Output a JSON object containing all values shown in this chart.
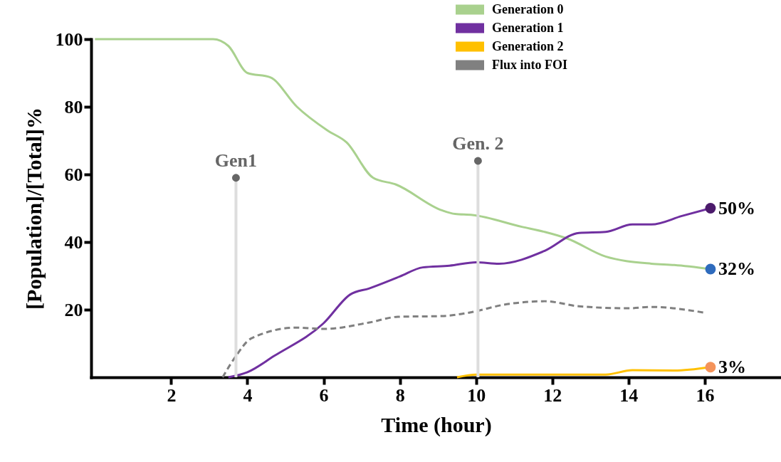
{
  "chart_data": {
    "type": "line",
    "xlabel": "Time (hour)",
    "ylabel": "[Population]/[Total]%",
    "xlim": [
      -0.1,
      18
    ],
    "ylim": [
      0,
      100
    ],
    "xticks": [
      2,
      4,
      6,
      8,
      10,
      12,
      14,
      16
    ],
    "yticks": [
      20,
      40,
      60,
      80,
      100
    ],
    "legend": "top right",
    "grid": false,
    "series": [
      {
        "name": "Generation 0",
        "color": "#a9d18e",
        "line_style": "solid",
        "x": [
          0,
          2.8,
          3.1,
          3.5,
          4.0,
          4.6,
          5.3,
          6.1,
          6.6,
          7.3,
          7.9,
          9.1,
          9.45,
          9.9,
          11.2,
          11.8,
          12.4,
          13.4,
          14.6,
          15.2,
          16.15
        ],
        "values": [
          100,
          100,
          100,
          98,
          90,
          88.7,
          80,
          73,
          69.5,
          59,
          57,
          49.4,
          48.3,
          48,
          44.5,
          43,
          41,
          35.7,
          33.6,
          33.2,
          32
        ]
      },
      {
        "name": "Generation 1",
        "color": "#7030a0",
        "line_style": "solid",
        "x": [
          3.5,
          4.0,
          4.7,
          6.0,
          6.7,
          7.2,
          8.0,
          8.6,
          9.3,
          10.0,
          10.6,
          11.8,
          12.7,
          13.4,
          14.1,
          14.6,
          15.4,
          16.15
        ],
        "values": [
          0,
          1.5,
          6.3,
          16,
          24.5,
          26.3,
          29.8,
          32.5,
          33,
          34,
          33.6,
          37.4,
          42.7,
          43,
          45.2,
          45.2,
          47.7,
          50
        ]
      },
      {
        "name": "Generation 2",
        "color": "#ffc000",
        "line_style": "solid",
        "x": [
          9.5,
          10.0,
          13.4,
          14.1,
          15.2,
          16.15
        ],
        "values": [
          0,
          0.8,
          0.8,
          2.1,
          2,
          3
        ]
      },
      {
        "name": "Flux into FOI",
        "color": "#808080",
        "line_style": "dashed",
        "x": [
          3.35,
          3.7,
          4.1,
          5.3,
          6.0,
          7.2,
          7.95,
          9.1,
          9.9,
          10.7,
          11.8,
          12.7,
          14.0,
          14.6,
          16.0
        ],
        "values": [
          0,
          6.3,
          11.5,
          14.7,
          14.3,
          16.2,
          17.9,
          18.1,
          19.3,
          21.4,
          22.5,
          21,
          20.4,
          20.8,
          19.1
        ]
      },
      {
        "type": "scatter",
        "x": [
          16.15,
          16.15,
          16.15
        ],
        "values": [
          50,
          32,
          3
        ],
        "colors": [
          "#4b1a6b",
          "#2e6bbd",
          "#f4935a"
        ],
        "value_labels": [
          "50%",
          "32%",
          "3%"
        ]
      }
    ],
    "annotations": [
      {
        "text": "Gen1",
        "x": 3.7,
        "y": 59
      },
      {
        "text": "Gen. 2",
        "x": 10.05,
        "y": 64
      }
    ]
  }
}
